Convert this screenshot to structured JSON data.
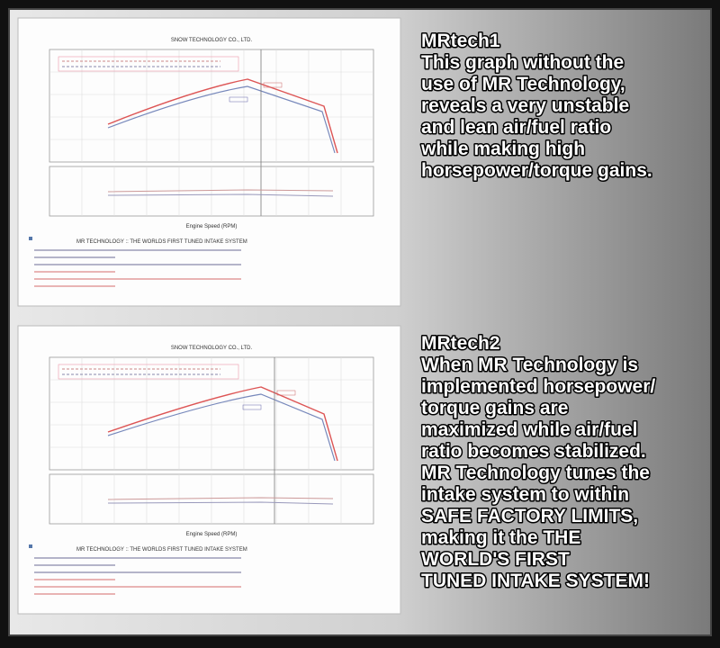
{
  "panels": [
    {
      "title": "MRtech1",
      "chart_title": "SNOW TECHNOLOGY CO., LTD.",
      "axis_title": "Engine Speed (RPM)",
      "caption": "MR TECHNOLOGY :: THE WORLDS FIRST TUNED INTAKE SYSTEM",
      "lines": [
        "This graph without the",
        "use of MR Technology,",
        "reveals a very unstable",
        "and lean air/fuel ratio",
        "while making high",
        "horsepower/torque gains."
      ]
    },
    {
      "title": "MRtech2",
      "chart_title": "SNOW TECHNOLOGY CO., LTD.",
      "axis_title": "Engine Speed (RPM)",
      "caption": "MR TECHNOLOGY :: THE WORLDS FIRST TUNED INTAKE SYSTEM",
      "lines": [
        "When MR Technology is",
        "implemented horsepower/",
        "torque gains are",
        "maximized while air/fuel",
        "ratio becomes stabilized.",
        "MR Technology tunes the",
        "intake system to within",
        "SAFE FACTORY LIMITS,",
        "making it the THE",
        "WORLD'S FIRST",
        "TUNED INTAKE SYSTEM!"
      ]
    }
  ]
}
